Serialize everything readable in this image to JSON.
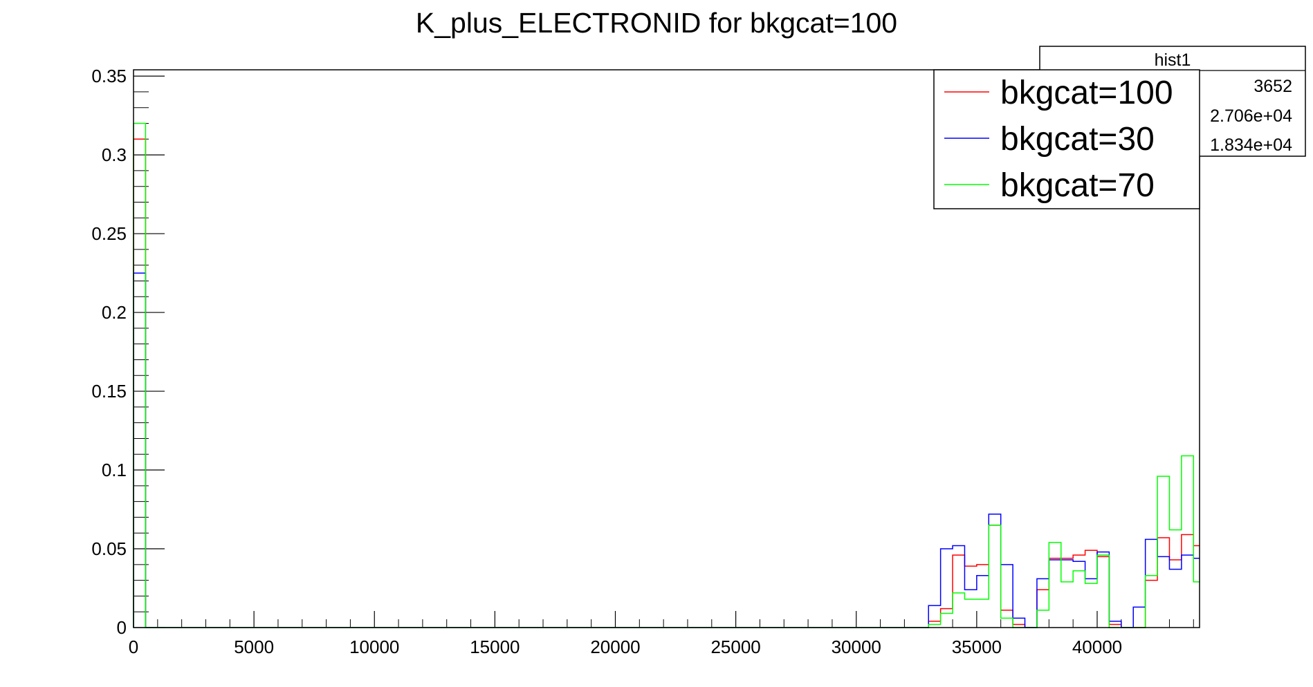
{
  "chart_data": {
    "type": "line",
    "title": "K_plus_ELECTRONID for bkgcat=100",
    "xlabel": "",
    "ylabel": "",
    "xlim": [
      0,
      44250
    ],
    "ylim": [
      0,
      0.354
    ],
    "x_tick_labels": [
      "0",
      "5000",
      "10000",
      "15000",
      "20000",
      "25000",
      "30000",
      "35000",
      "40000"
    ],
    "x_tick_values": [
      0,
      5000,
      10000,
      15000,
      20000,
      25000,
      30000,
      35000,
      40000
    ],
    "y_tick_labels": [
      "0",
      "0.05",
      "0.1",
      "0.15",
      "0.2",
      "0.25",
      "0.3",
      "0.35"
    ],
    "y_tick_values": [
      0,
      0.05,
      0.1,
      0.15,
      0.2,
      0.25,
      0.3,
      0.35
    ],
    "grid": false,
    "legend_position": "top-right",
    "stats_box": {
      "name": "hist1",
      "values": [
        "3652",
        "2.706e+04",
        "1.834e+04"
      ]
    },
    "series": [
      {
        "name": "bkgcat=100",
        "color": "#ff0000",
        "bins": [
          [
            0,
            500,
            0.31
          ],
          [
            33000,
            33500,
            0.004
          ],
          [
            33500,
            34000,
            0.012
          ],
          [
            34000,
            34500,
            0.046
          ],
          [
            34500,
            35000,
            0.039
          ],
          [
            35000,
            35500,
            0.04
          ],
          [
            35500,
            36000,
            0.065
          ],
          [
            36000,
            36500,
            0.011
          ],
          [
            36500,
            37000,
            0.002
          ],
          [
            37500,
            38000,
            0.024
          ],
          [
            38000,
            38500,
            0.044
          ],
          [
            38500,
            39000,
            0.044
          ],
          [
            39000,
            39500,
            0.046
          ],
          [
            39500,
            40000,
            0.049
          ],
          [
            40000,
            40500,
            0.045
          ],
          [
            40500,
            41000,
            0.002
          ],
          [
            42000,
            42500,
            0.03
          ],
          [
            42500,
            43000,
            0.057
          ],
          [
            43000,
            43500,
            0.043
          ],
          [
            43500,
            44000,
            0.059
          ],
          [
            44000,
            44250,
            0.052
          ]
        ]
      },
      {
        "name": "bkgcat=30",
        "color": "#0000ff",
        "bins": [
          [
            0,
            500,
            0.225
          ],
          [
            33000,
            33500,
            0.014
          ],
          [
            33500,
            34000,
            0.05
          ],
          [
            34000,
            34500,
            0.052
          ],
          [
            34500,
            35000,
            0.024
          ],
          [
            35000,
            35500,
            0.033
          ],
          [
            35500,
            36000,
            0.072
          ],
          [
            36000,
            36500,
            0.04
          ],
          [
            36500,
            37000,
            0.006
          ],
          [
            37500,
            38000,
            0.031
          ],
          [
            38000,
            38500,
            0.043
          ],
          [
            38500,
            39000,
            0.043
          ],
          [
            39000,
            39500,
            0.042
          ],
          [
            39500,
            40000,
            0.031
          ],
          [
            40000,
            40500,
            0.048
          ],
          [
            40500,
            41000,
            0.004
          ],
          [
            41500,
            42000,
            0.013
          ],
          [
            42000,
            42500,
            0.056
          ],
          [
            42500,
            43000,
            0.045
          ],
          [
            43000,
            43500,
            0.037
          ],
          [
            43500,
            44000,
            0.046
          ],
          [
            44000,
            44250,
            0.044
          ]
        ]
      },
      {
        "name": "bkgcat=70",
        "color": "#00ff00",
        "bins": [
          [
            0,
            500,
            0.32
          ],
          [
            33000,
            33500,
            0.002
          ],
          [
            33500,
            34000,
            0.009
          ],
          [
            34000,
            34500,
            0.022
          ],
          [
            34500,
            35000,
            0.018
          ],
          [
            35000,
            35500,
            0.018
          ],
          [
            35500,
            36000,
            0.065
          ],
          [
            36000,
            36500,
            0.006
          ],
          [
            37500,
            38000,
            0.011
          ],
          [
            38000,
            38500,
            0.054
          ],
          [
            38500,
            39000,
            0.029
          ],
          [
            39000,
            39500,
            0.036
          ],
          [
            39500,
            40000,
            0.028
          ],
          [
            40000,
            40500,
            0.046
          ],
          [
            42000,
            42500,
            0.033
          ],
          [
            42500,
            43000,
            0.096
          ],
          [
            43000,
            43500,
            0.062
          ],
          [
            43500,
            44000,
            0.109
          ],
          [
            44000,
            44250,
            0.029
          ]
        ]
      }
    ]
  }
}
